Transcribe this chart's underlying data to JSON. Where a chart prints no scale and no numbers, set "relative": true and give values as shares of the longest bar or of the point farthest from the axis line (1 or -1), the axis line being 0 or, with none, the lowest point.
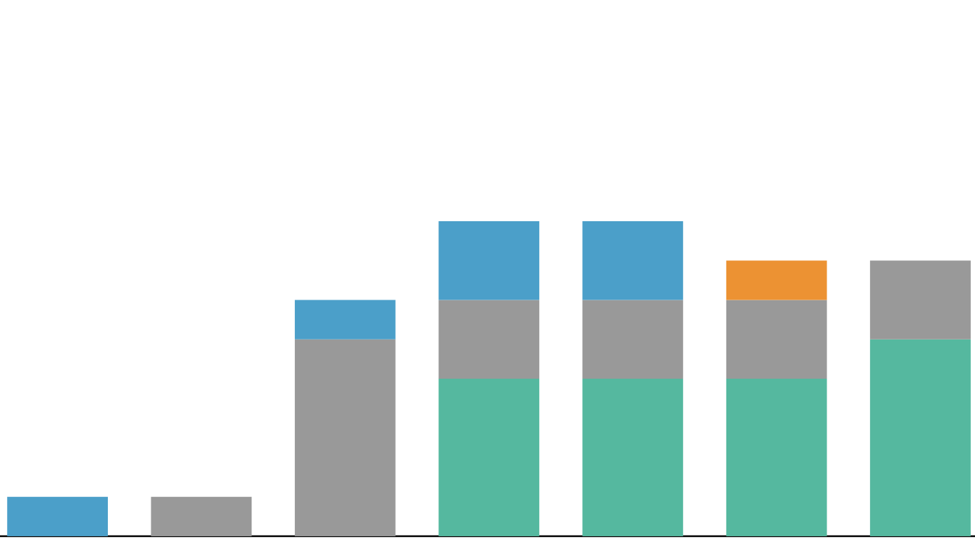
{
  "chart_data": {
    "type": "bar",
    "stacked": true,
    "relative": true,
    "categories": [
      null,
      null,
      null,
      null,
      null,
      null,
      null
    ],
    "series": [
      {
        "color": "#55b89f",
        "values": [
          null,
          null,
          null,
          0.5,
          0.5,
          0.5,
          0.625
        ]
      },
      {
        "color": "#999999",
        "values": [
          null,
          0.125,
          0.625,
          0.25,
          0.25,
          0.25,
          0.25
        ]
      },
      {
        "color": "#4b9fc9",
        "values": [
          0.125,
          null,
          0.125,
          0.25,
          0.25,
          null,
          null
        ]
      },
      {
        "color": "#ec9233",
        "values": [
          null,
          null,
          null,
          null,
          null,
          0.125,
          null
        ]
      }
    ]
  }
}
